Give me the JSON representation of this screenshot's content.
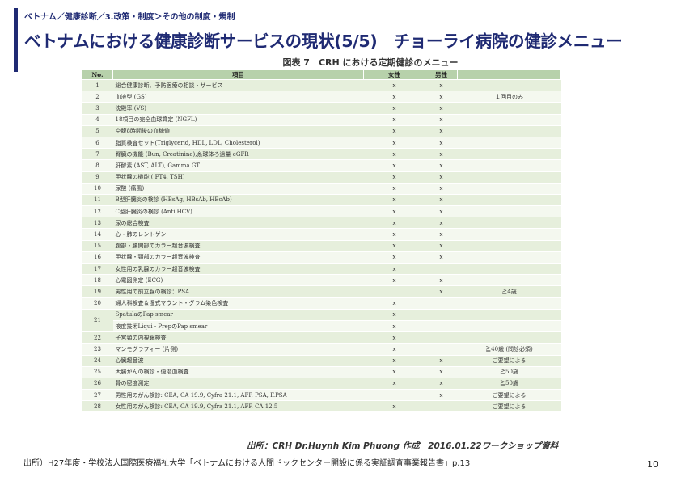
{
  "header": {
    "breadcrumb": "ベトナム／健康診断／3.政策・制度＞その他の制度・規制",
    "title": "ベトナムにおける健康診断サービスの現状(5/5)　チョーライ病院の健診メニュー"
  },
  "caption": "図表 7　CRH における定期健診のメニュー",
  "table": {
    "headers": {
      "no": "No.",
      "item": "項目",
      "female": "女性",
      "male": "男性",
      "note": ""
    },
    "rows": [
      {
        "no": "1",
        "item": "総合健康診断、予防医療の相談・サービス",
        "female": "x",
        "male": "x",
        "note": ""
      },
      {
        "no": "2",
        "item": "血液型 (GS)",
        "female": "x",
        "male": "x",
        "note": "１回目のみ"
      },
      {
        "no": "3",
        "item": "沈殿率 (VS)",
        "female": "x",
        "male": "x",
        "note": ""
      },
      {
        "no": "4",
        "item": "18項目の完全血球算定 (NGFL)",
        "female": "x",
        "male": "x",
        "note": ""
      },
      {
        "no": "5",
        "item": "空腹8時間後の血糖値",
        "female": "x",
        "male": "x",
        "note": ""
      },
      {
        "no": "6",
        "item": "脂質検査セット(Triglycerid, HDL, LDL, Cholesterol)",
        "female": "x",
        "male": "x",
        "note": ""
      },
      {
        "no": "7",
        "item": "腎臓の機能 (Bun, Creatinine),糸球体ろ過量 eGFR",
        "female": "x",
        "male": "x",
        "note": ""
      },
      {
        "no": "8",
        "item": "肝酵素 (AST, ALT), Gamma GT",
        "female": "x",
        "male": "x",
        "note": ""
      },
      {
        "no": "9",
        "item": "甲状腺の機能 ( FT4, TSH)",
        "female": "x",
        "male": "x",
        "note": ""
      },
      {
        "no": "10",
        "item": "尿酸 (痛風)",
        "female": "x",
        "male": "x",
        "note": ""
      },
      {
        "no": "11",
        "item": "B型肝臓炎の検診 (HBsAg, HBsAb, HBcAb)",
        "female": "x",
        "male": "x",
        "note": ""
      },
      {
        "no": "12",
        "item": "C型肝臓炎の検診 (Anti HCV)",
        "female": "x",
        "male": "x",
        "note": ""
      },
      {
        "no": "13",
        "item": "尿の総合検査",
        "female": "x",
        "male": "x",
        "note": ""
      },
      {
        "no": "14",
        "item": "心・肺のレントゲン",
        "female": "x",
        "male": "x",
        "note": ""
      },
      {
        "no": "15",
        "item": "腹部・腰関部のカラー超音波検査",
        "female": "x",
        "male": "x",
        "note": ""
      },
      {
        "no": "16",
        "item": "甲状腺・頸部のカラー超音波検査",
        "female": "x",
        "male": "x",
        "note": ""
      },
      {
        "no": "17",
        "item": "女性用の乳腺のカラー超音波検査",
        "female": "x",
        "male": "",
        "note": ""
      },
      {
        "no": "18",
        "item": "心電図測定 (ECG)",
        "female": "x",
        "male": "x",
        "note": ""
      },
      {
        "no": "19",
        "item": "男性用の前立腺の検診：PSA",
        "female": "",
        "male": "x",
        "note": "≧4歳"
      },
      {
        "no": "20",
        "item": "婦人科検査＆湿式マウント・グラム染色検査",
        "female": "x",
        "male": "",
        "note": ""
      },
      {
        "no": "21",
        "item": "SpatulaのPap smear",
        "female": "x",
        "male": "",
        "note": ""
      },
      {
        "no": "",
        "item": "液度技術Liqui - PrepのPap smear",
        "female": "x",
        "male": "",
        "note": ""
      },
      {
        "no": "22",
        "item": "子宮頸の内視鏡検査",
        "female": "x",
        "male": "",
        "note": ""
      },
      {
        "no": "23",
        "item": "マンモグラフィー (片側)",
        "female": "x",
        "male": "",
        "note": "≧40歳 (問診必須)"
      },
      {
        "no": "24",
        "item": "心臓超音波",
        "female": "x",
        "male": "x",
        "note": "ご要望による"
      },
      {
        "no": "25",
        "item": "大腸がんの検診・便潜血検査",
        "female": "x",
        "male": "x",
        "note": "≧50歳"
      },
      {
        "no": "26",
        "item": "骨の密度測定",
        "female": "x",
        "male": "x",
        "note": "≧50歳"
      },
      {
        "no": "27",
        "item": "男性用のがん検診: CEA, CA 19.9, Cyfra 21.1, AFP, PSA, F.PSA",
        "female": "",
        "male": "x",
        "note": "ご要望による"
      },
      {
        "no": "28",
        "item": "女性用のがん検診: CEA, CA 19.9, Cyfra 21.1, AFP, CA 12.5",
        "female": "x",
        "male": "",
        "note": "ご要望による"
      }
    ]
  },
  "source": "出所：CRH Dr.Huynh Kim Phuong 作成　2016.01.22ワークショップ資料",
  "footnote": "出所）H27年度・学校法人国際医療福祉大学「ベトナムにおける人間ドックセンター開設に係る実証調査事業報告書」p.13",
  "page_number": "10"
}
